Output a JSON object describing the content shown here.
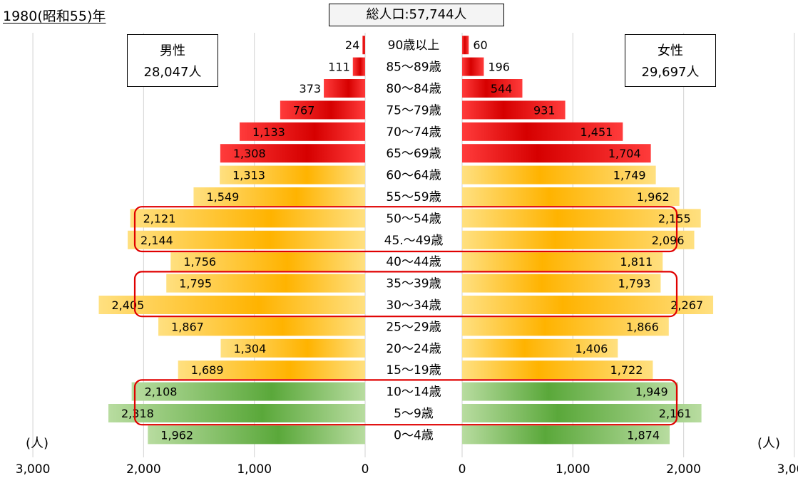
{
  "title": "1980(昭和55)年",
  "total_label": "総人口:57,744人",
  "male": {
    "label": "男性",
    "total": "28,047人"
  },
  "female": {
    "label": "女性",
    "total": "29,697人"
  },
  "unit_label": "(人)",
  "colors": {
    "elderly": "#ee1c1c",
    "working": "#ffc000",
    "youth": "#70b050",
    "highlight_frame": "#e00000",
    "gridline": "#d9d9d9"
  },
  "chart_data": {
    "type": "bar",
    "orientation": "horizontal-population-pyramid",
    "categories": [
      "90歳以上",
      "85〜89歳",
      "80〜84歳",
      "75〜79歳",
      "70〜74歳",
      "65〜69歳",
      "60〜64歳",
      "55〜59歳",
      "50〜54歳",
      "45.〜49歳",
      "40〜44歳",
      "35〜39歳",
      "30〜34歳",
      "25〜29歳",
      "20〜24歳",
      "15〜19歳",
      "10〜14歳",
      "5〜9歳",
      "0〜4歳"
    ],
    "series": [
      {
        "name": "男性",
        "values": [
          24,
          111,
          373,
          767,
          1133,
          1308,
          1313,
          1549,
          2121,
          2144,
          1756,
          1795,
          2405,
          1867,
          1304,
          1689,
          2108,
          2318,
          1962
        ],
        "labels": [
          "24",
          "111",
          "373",
          "767",
          "1,133",
          "1,308",
          "1,313",
          "1,549",
          "2,121",
          "2,144",
          "1,756",
          "1,795",
          "2,405",
          "1,867",
          "1,304",
          "1,689",
          "2,108",
          "2,318",
          "1,962"
        ]
      },
      {
        "name": "女性",
        "values": [
          60,
          196,
          544,
          931,
          1451,
          1704,
          1749,
          1962,
          2155,
          2096,
          1811,
          1793,
          2267,
          1866,
          1406,
          1722,
          1949,
          2161,
          1874
        ],
        "labels": [
          "60",
          "196",
          "544",
          "931",
          "1,451",
          "1,704",
          "1,749",
          "1,962",
          "2,155",
          "2,096",
          "1,811",
          "1,793",
          "2,267",
          "1,866",
          "1,406",
          "1,722",
          "1,949",
          "2,161",
          "1,874"
        ]
      }
    ],
    "age_group": [
      "elderly",
      "elderly",
      "elderly",
      "elderly",
      "elderly",
      "elderly",
      "working",
      "working",
      "working",
      "working",
      "working",
      "working",
      "working",
      "working",
      "working",
      "working",
      "youth",
      "youth",
      "youth"
    ],
    "highlighted_groups": [
      [
        "50〜54歳",
        "45.〜49歳"
      ],
      [
        "35〜39歳",
        "30〜34歳"
      ],
      [
        "10〜14歳",
        "5〜9歳"
      ]
    ],
    "xlim": [
      0,
      3000
    ],
    "xticks": [
      3000,
      2000,
      1000,
      0
    ],
    "xtick_labels": [
      "3,000",
      "2,000",
      "1,000",
      "0"
    ],
    "grid": true
  }
}
